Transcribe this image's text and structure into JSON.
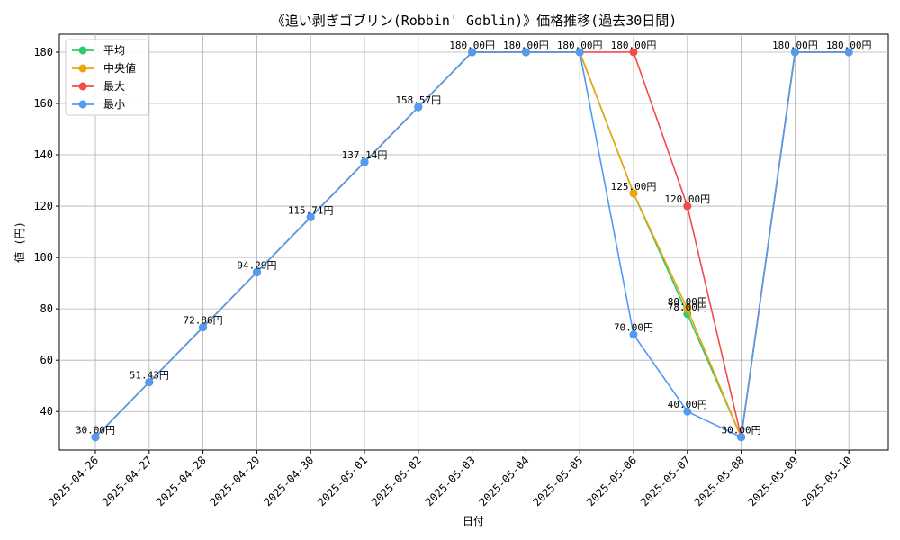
{
  "chart_data": {
    "type": "line",
    "title": "《追い剥ぎゴブリン(Robbin' Goblin)》価格推移(過去30日間)",
    "xlabel": "日付",
    "ylabel": "値 (円)",
    "ylim": [
      25,
      187
    ],
    "yticks": [
      40,
      60,
      80,
      100,
      120,
      140,
      160,
      180
    ],
    "grid": true,
    "legend_position": "top-left",
    "categories": [
      "2025-04-26",
      "2025-04-27",
      "2025-04-28",
      "2025-04-29",
      "2025-04-30",
      "2025-05-01",
      "2025-05-02",
      "2025-05-03",
      "2025-05-04",
      "2025-05-05",
      "2025-05-06",
      "2025-05-07",
      "2025-05-08",
      "2025-05-09",
      "2025-05-10"
    ],
    "series": [
      {
        "name": "平均",
        "color": "#2ecc71",
        "values": [
          30,
          51.43,
          72.86,
          94.29,
          115.71,
          137.14,
          158.57,
          180,
          180,
          180,
          125,
          78,
          30,
          180,
          180
        ]
      },
      {
        "name": "中央値",
        "color": "#f0a30a",
        "values": [
          30,
          51.43,
          72.86,
          94.29,
          115.71,
          137.14,
          158.57,
          180,
          180,
          180,
          125,
          80,
          30,
          180,
          180
        ]
      },
      {
        "name": "最大",
        "color": "#f24b4b",
        "values": [
          30,
          51.43,
          72.86,
          94.29,
          115.71,
          137.14,
          158.57,
          180,
          180,
          180,
          180,
          120,
          30,
          180,
          180
        ]
      },
      {
        "name": "最小",
        "color": "#4f9bf5",
        "values": [
          30,
          51.43,
          72.86,
          94.29,
          115.71,
          137.14,
          158.57,
          180,
          180,
          180,
          70,
          40,
          30,
          180,
          180
        ]
      }
    ],
    "annotations": [
      {
        "text": "30.00円",
        "x": 0,
        "y": 30
      },
      {
        "text": "51.43円",
        "x": 1,
        "y": 51.43
      },
      {
        "text": "72.86円",
        "x": 2,
        "y": 72.86
      },
      {
        "text": "94.29円",
        "x": 3,
        "y": 94.29
      },
      {
        "text": "115.71円",
        "x": 4,
        "y": 115.71
      },
      {
        "text": "137.14円",
        "x": 5,
        "y": 137.14
      },
      {
        "text": "158.57円",
        "x": 6,
        "y": 158.57
      },
      {
        "text": "180.00円",
        "x": 7,
        "y": 180
      },
      {
        "text": "180.00円",
        "x": 8,
        "y": 180
      },
      {
        "text": "180.00円",
        "x": 9,
        "y": 180
      },
      {
        "text": "180.00円",
        "x": 10,
        "y": 180
      },
      {
        "text": "125.00円",
        "x": 10,
        "y": 125
      },
      {
        "text": "70.00円",
        "x": 10,
        "y": 70
      },
      {
        "text": "120.00円",
        "x": 11,
        "y": 120
      },
      {
        "text": "80.00円",
        "x": 11,
        "y": 80
      },
      {
        "text": "78.00円",
        "x": 11,
        "y": 78
      },
      {
        "text": "40.00円",
        "x": 11,
        "y": 40
      },
      {
        "text": "30.00円",
        "x": 12,
        "y": 30
      },
      {
        "text": "180.00円",
        "x": 13,
        "y": 180
      },
      {
        "text": "180.00円",
        "x": 14,
        "y": 180
      }
    ]
  }
}
